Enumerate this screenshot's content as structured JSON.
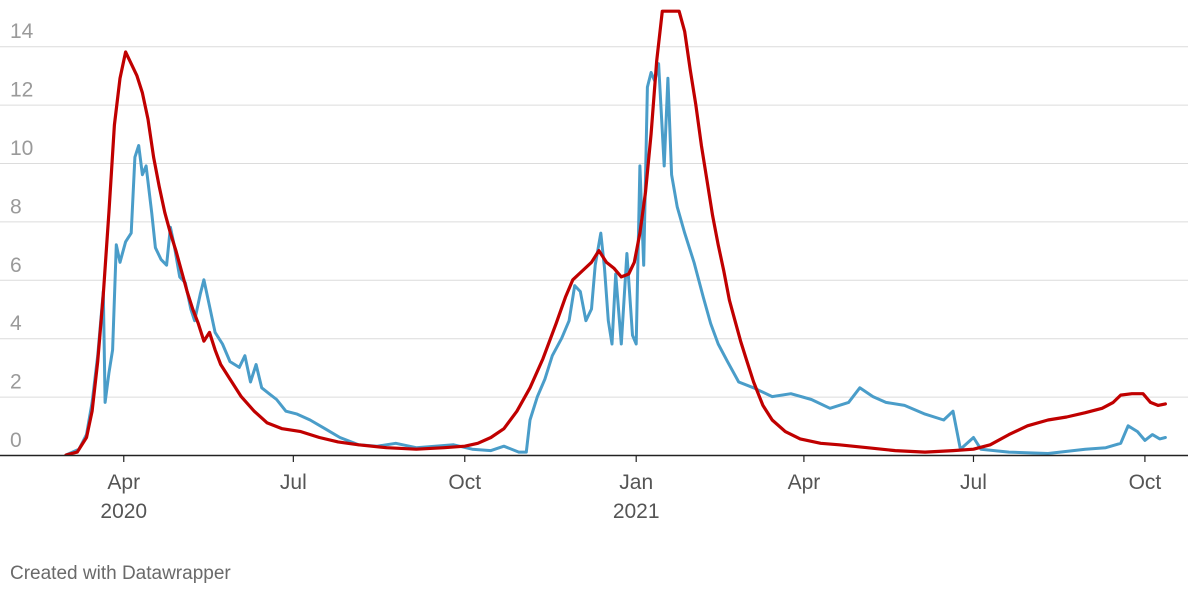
{
  "footer": "Created with Datawrapper",
  "chart_data": {
    "type": "line",
    "title": "",
    "xlabel": "",
    "ylabel": "",
    "x_range": [
      "2020-03-01",
      "2021-10-15"
    ],
    "ylim": [
      0,
      15
    ],
    "y_ticks": [
      0,
      2,
      4,
      6,
      8,
      10,
      12,
      14
    ],
    "x_ticks": [
      {
        "date": "2020-04-01",
        "label": "Apr",
        "sublabel": "2020"
      },
      {
        "date": "2020-07-01",
        "label": "Jul",
        "sublabel": ""
      },
      {
        "date": "2020-10-01",
        "label": "Oct",
        "sublabel": ""
      },
      {
        "date": "2021-01-01",
        "label": "Jan",
        "sublabel": "2021"
      },
      {
        "date": "2021-04-01",
        "label": "Apr",
        "sublabel": ""
      },
      {
        "date": "2021-07-01",
        "label": "Jul",
        "sublabel": ""
      },
      {
        "date": "2021-10-01",
        "label": "Oct",
        "sublabel": ""
      }
    ],
    "grid": true,
    "legend": "none",
    "series": [
      {
        "color": "#c00000",
        "points": [
          [
            "2020-03-01",
            0.0
          ],
          [
            "2020-03-07",
            0.1
          ],
          [
            "2020-03-12",
            0.6
          ],
          [
            "2020-03-15",
            1.5
          ],
          [
            "2020-03-18",
            3.2
          ],
          [
            "2020-03-21",
            5.5
          ],
          [
            "2020-03-24",
            8.3
          ],
          [
            "2020-03-27",
            11.3
          ],
          [
            "2020-03-30",
            12.9
          ],
          [
            "2020-04-02",
            13.8
          ],
          [
            "2020-04-05",
            13.4
          ],
          [
            "2020-04-08",
            13.0
          ],
          [
            "2020-04-11",
            12.4
          ],
          [
            "2020-04-14",
            11.5
          ],
          [
            "2020-04-17",
            10.2
          ],
          [
            "2020-04-20",
            9.2
          ],
          [
            "2020-04-23",
            8.3
          ],
          [
            "2020-04-26",
            7.6
          ],
          [
            "2020-04-29",
            7.0
          ],
          [
            "2020-05-02",
            6.3
          ],
          [
            "2020-05-05",
            5.6
          ],
          [
            "2020-05-08",
            5.0
          ],
          [
            "2020-05-11",
            4.5
          ],
          [
            "2020-05-14",
            3.9
          ],
          [
            "2020-05-17",
            4.2
          ],
          [
            "2020-05-20",
            3.6
          ],
          [
            "2020-05-23",
            3.1
          ],
          [
            "2020-05-28",
            2.6
          ],
          [
            "2020-06-03",
            2.0
          ],
          [
            "2020-06-10",
            1.5
          ],
          [
            "2020-06-17",
            1.1
          ],
          [
            "2020-06-25",
            0.9
          ],
          [
            "2020-07-05",
            0.8
          ],
          [
            "2020-07-15",
            0.6
          ],
          [
            "2020-07-25",
            0.45
          ],
          [
            "2020-08-05",
            0.35
          ],
          [
            "2020-08-20",
            0.25
          ],
          [
            "2020-09-05",
            0.2
          ],
          [
            "2020-09-20",
            0.25
          ],
          [
            "2020-10-01",
            0.3
          ],
          [
            "2020-10-08",
            0.4
          ],
          [
            "2020-10-15",
            0.6
          ],
          [
            "2020-10-22",
            0.9
          ],
          [
            "2020-10-29",
            1.5
          ],
          [
            "2020-11-05",
            2.3
          ],
          [
            "2020-11-12",
            3.3
          ],
          [
            "2020-11-19",
            4.5
          ],
          [
            "2020-11-24",
            5.4
          ],
          [
            "2020-11-28",
            6.0
          ],
          [
            "2020-12-03",
            6.3
          ],
          [
            "2020-12-08",
            6.6
          ],
          [
            "2020-12-12",
            7.0
          ],
          [
            "2020-12-16",
            6.6
          ],
          [
            "2020-12-20",
            6.4
          ],
          [
            "2020-12-24",
            6.1
          ],
          [
            "2020-12-28",
            6.2
          ],
          [
            "2020-12-31",
            6.6
          ],
          [
            "2021-01-03",
            7.6
          ],
          [
            "2021-01-06",
            9.0
          ],
          [
            "2021-01-09",
            11.0
          ],
          [
            "2021-01-12",
            13.5
          ],
          [
            "2021-01-15",
            15.2
          ],
          [
            "2021-01-18",
            15.2
          ],
          [
            "2021-01-21",
            15.2
          ],
          [
            "2021-01-24",
            15.2
          ],
          [
            "2021-01-27",
            14.5
          ],
          [
            "2021-01-30",
            13.2
          ],
          [
            "2021-02-02",
            12.0
          ],
          [
            "2021-02-05",
            10.6
          ],
          [
            "2021-02-08",
            9.4
          ],
          [
            "2021-02-11",
            8.2
          ],
          [
            "2021-02-14",
            7.2
          ],
          [
            "2021-02-17",
            6.3
          ],
          [
            "2021-02-20",
            5.3
          ],
          [
            "2021-02-23",
            4.6
          ],
          [
            "2021-02-26",
            3.9
          ],
          [
            "2021-03-01",
            3.3
          ],
          [
            "2021-03-05",
            2.5
          ],
          [
            "2021-03-10",
            1.7
          ],
          [
            "2021-03-15",
            1.2
          ],
          [
            "2021-03-22",
            0.8
          ],
          [
            "2021-03-30",
            0.55
          ],
          [
            "2021-04-10",
            0.4
          ],
          [
            "2021-04-20",
            0.35
          ],
          [
            "2021-05-05",
            0.25
          ],
          [
            "2021-05-20",
            0.15
          ],
          [
            "2021-06-05",
            0.1
          ],
          [
            "2021-06-20",
            0.15
          ],
          [
            "2021-07-01",
            0.2
          ],
          [
            "2021-07-10",
            0.35
          ],
          [
            "2021-07-20",
            0.7
          ],
          [
            "2021-07-30",
            1.0
          ],
          [
            "2021-08-10",
            1.2
          ],
          [
            "2021-08-20",
            1.3
          ],
          [
            "2021-08-30",
            1.45
          ],
          [
            "2021-09-08",
            1.6
          ],
          [
            "2021-09-14",
            1.8
          ],
          [
            "2021-09-18",
            2.05
          ],
          [
            "2021-09-24",
            2.1
          ],
          [
            "2021-09-30",
            2.1
          ],
          [
            "2021-10-04",
            1.8
          ],
          [
            "2021-10-08",
            1.7
          ],
          [
            "2021-10-12",
            1.75
          ]
        ]
      },
      {
        "color": "#4a9dc9",
        "points": [
          [
            "2020-03-01",
            0.0
          ],
          [
            "2020-03-08",
            0.2
          ],
          [
            "2020-03-12",
            0.7
          ],
          [
            "2020-03-15",
            1.8
          ],
          [
            "2020-03-18",
            3.4
          ],
          [
            "2020-03-21",
            5.6
          ],
          [
            "2020-03-22",
            1.8
          ],
          [
            "2020-03-24",
            2.8
          ],
          [
            "2020-03-26",
            3.6
          ],
          [
            "2020-03-28",
            7.2
          ],
          [
            "2020-03-30",
            6.6
          ],
          [
            "2020-04-02",
            7.3
          ],
          [
            "2020-04-05",
            7.6
          ],
          [
            "2020-04-07",
            10.2
          ],
          [
            "2020-04-09",
            10.6
          ],
          [
            "2020-04-11",
            9.6
          ],
          [
            "2020-04-13",
            9.9
          ],
          [
            "2020-04-16",
            8.3
          ],
          [
            "2020-04-18",
            7.1
          ],
          [
            "2020-04-21",
            6.7
          ],
          [
            "2020-04-24",
            6.5
          ],
          [
            "2020-04-26",
            7.8
          ],
          [
            "2020-04-28",
            7.2
          ],
          [
            "2020-05-01",
            6.1
          ],
          [
            "2020-05-04",
            5.9
          ],
          [
            "2020-05-07",
            5.0
          ],
          [
            "2020-05-09",
            4.6
          ],
          [
            "2020-05-12",
            5.5
          ],
          [
            "2020-05-14",
            6.0
          ],
          [
            "2020-05-17",
            5.1
          ],
          [
            "2020-05-20",
            4.2
          ],
          [
            "2020-05-24",
            3.8
          ],
          [
            "2020-05-28",
            3.2
          ],
          [
            "2020-06-02",
            3.0
          ],
          [
            "2020-06-05",
            3.4
          ],
          [
            "2020-06-08",
            2.5
          ],
          [
            "2020-06-11",
            3.1
          ],
          [
            "2020-06-14",
            2.3
          ],
          [
            "2020-06-18",
            2.1
          ],
          [
            "2020-06-22",
            1.9
          ],
          [
            "2020-06-27",
            1.5
          ],
          [
            "2020-07-03",
            1.4
          ],
          [
            "2020-07-10",
            1.2
          ],
          [
            "2020-07-18",
            0.9
          ],
          [
            "2020-07-26",
            0.6
          ],
          [
            "2020-08-05",
            0.35
          ],
          [
            "2020-08-15",
            0.3
          ],
          [
            "2020-08-25",
            0.4
          ],
          [
            "2020-09-05",
            0.25
          ],
          [
            "2020-09-15",
            0.3
          ],
          [
            "2020-09-25",
            0.35
          ],
          [
            "2020-10-05",
            0.2
          ],
          [
            "2020-10-15",
            0.15
          ],
          [
            "2020-10-22",
            0.3
          ],
          [
            "2020-10-30",
            0.1
          ],
          [
            "2020-11-03",
            0.1
          ],
          [
            "2020-11-05",
            1.2
          ],
          [
            "2020-11-09",
            2.0
          ],
          [
            "2020-11-13",
            2.6
          ],
          [
            "2020-11-17",
            3.4
          ],
          [
            "2020-11-22",
            4.0
          ],
          [
            "2020-11-26",
            4.6
          ],
          [
            "2020-11-29",
            5.8
          ],
          [
            "2020-12-02",
            5.6
          ],
          [
            "2020-12-05",
            4.6
          ],
          [
            "2020-12-08",
            5.0
          ],
          [
            "2020-12-10",
            6.5
          ],
          [
            "2020-12-13",
            7.6
          ],
          [
            "2020-12-15",
            6.4
          ],
          [
            "2020-12-17",
            4.6
          ],
          [
            "2020-12-19",
            3.8
          ],
          [
            "2020-12-21",
            6.2
          ],
          [
            "2020-12-24",
            3.8
          ],
          [
            "2020-12-27",
            6.9
          ],
          [
            "2020-12-30",
            4.1
          ],
          [
            "2021-01-01",
            3.8
          ],
          [
            "2021-01-03",
            9.9
          ],
          [
            "2021-01-05",
            6.5
          ],
          [
            "2021-01-07",
            12.6
          ],
          [
            "2021-01-09",
            13.1
          ],
          [
            "2021-01-11",
            12.8
          ],
          [
            "2021-01-13",
            13.4
          ],
          [
            "2021-01-16",
            9.9
          ],
          [
            "2021-01-18",
            12.9
          ],
          [
            "2021-01-20",
            9.6
          ],
          [
            "2021-01-23",
            8.5
          ],
          [
            "2021-01-27",
            7.6
          ],
          [
            "2021-02-01",
            6.6
          ],
          [
            "2021-02-06",
            5.4
          ],
          [
            "2021-02-10",
            4.5
          ],
          [
            "2021-02-14",
            3.8
          ],
          [
            "2021-02-19",
            3.2
          ],
          [
            "2021-02-25",
            2.5
          ],
          [
            "2021-03-05",
            2.3
          ],
          [
            "2021-03-15",
            2.0
          ],
          [
            "2021-03-25",
            2.1
          ],
          [
            "2021-04-05",
            1.9
          ],
          [
            "2021-04-15",
            1.6
          ],
          [
            "2021-04-25",
            1.8
          ],
          [
            "2021-05-01",
            2.3
          ],
          [
            "2021-05-08",
            2.0
          ],
          [
            "2021-05-15",
            1.8
          ],
          [
            "2021-05-25",
            1.7
          ],
          [
            "2021-06-05",
            1.4
          ],
          [
            "2021-06-15",
            1.2
          ],
          [
            "2021-06-20",
            1.5
          ],
          [
            "2021-06-24",
            0.2
          ],
          [
            "2021-07-01",
            0.6
          ],
          [
            "2021-07-05",
            0.2
          ],
          [
            "2021-07-20",
            0.1
          ],
          [
            "2021-08-10",
            0.05
          ],
          [
            "2021-08-30",
            0.2
          ],
          [
            "2021-09-10",
            0.25
          ],
          [
            "2021-09-18",
            0.4
          ],
          [
            "2021-09-22",
            1.0
          ],
          [
            "2021-09-27",
            0.8
          ],
          [
            "2021-10-01",
            0.5
          ],
          [
            "2021-10-05",
            0.7
          ],
          [
            "2021-10-09",
            0.55
          ],
          [
            "2021-10-12",
            0.6
          ]
        ]
      }
    ]
  }
}
